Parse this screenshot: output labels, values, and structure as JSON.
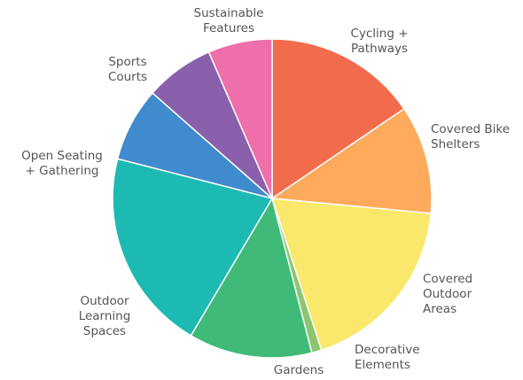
{
  "chart_data": {
    "type": "pie",
    "start_angle_deg": 0,
    "direction": "clockwise",
    "slices": [
      {
        "label": [
          "Cycling +",
          "Pathways"
        ],
        "value": 15.5,
        "color": "#f26b4d"
      },
      {
        "label": [
          "Covered Bike",
          "Shelters"
        ],
        "value": 11.0,
        "color": "#fdaa5c"
      },
      {
        "label": [
          "Covered",
          "Outdoor",
          "Areas"
        ],
        "value": 18.5,
        "color": "#f9e86b"
      },
      {
        "label": [
          "Decorative",
          "Elements"
        ],
        "value": 1.0,
        "color": "#8dc66f"
      },
      {
        "label": [
          "Gardens"
        ],
        "value": 12.5,
        "color": "#3fba78"
      },
      {
        "label": [
          "Outdoor",
          "Learning",
          "Spaces"
        ],
        "value": 20.5,
        "color": "#1dbab4"
      },
      {
        "label": [
          "Open Seating",
          "+ Gathering"
        ],
        "value": 7.5,
        "color": "#3f8bcd"
      },
      {
        "label": [
          "Sports",
          "Courts"
        ],
        "value": 7.0,
        "color": "#8a5fab"
      },
      {
        "label": [
          "Sustainable",
          "Features"
        ],
        "value": 6.5,
        "color": "#ee6faa"
      }
    ],
    "legend": "none"
  }
}
